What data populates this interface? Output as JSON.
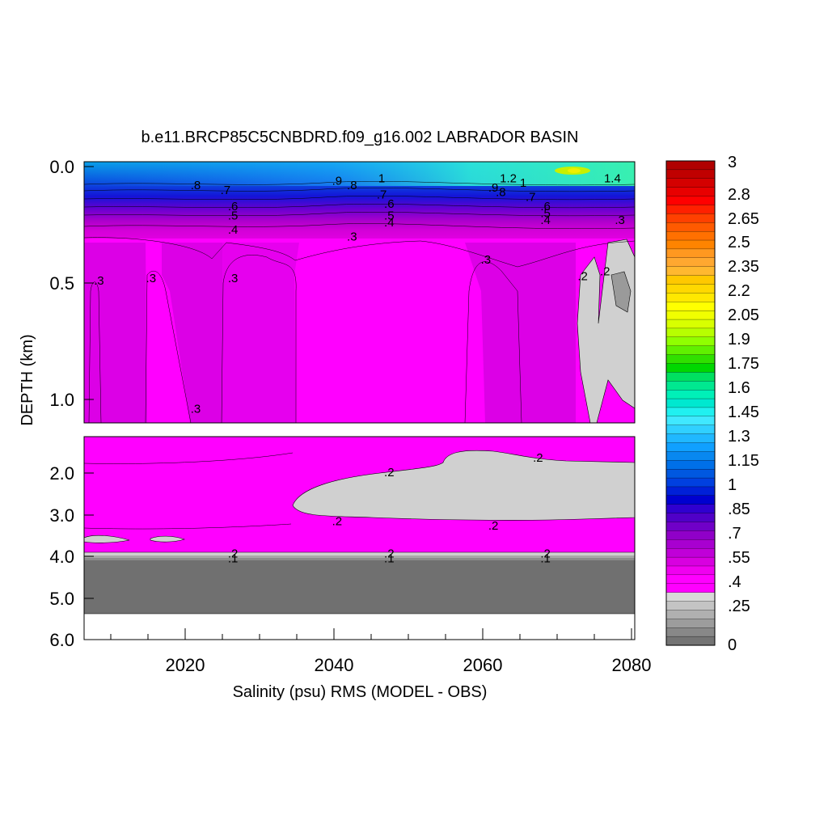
{
  "chart_data": {
    "type": "heatmap",
    "title": "b.e11.BRCP85C5CNBDRD.f09_g16.002 LABRADOR BASIN",
    "xlabel": "Salinity (psu) RMS (MODEL - OBS)",
    "ylabel": "DEPTH (km)",
    "x_ticks": [
      "2020",
      "2040",
      "2060",
      "2080"
    ],
    "y_ticks_upper": [
      "0.0",
      "0.5",
      "1.0"
    ],
    "y_ticks_lower": [
      "2.0",
      "3.0",
      "4.0",
      "5.0",
      "6.0"
    ],
    "xlim": [
      2006,
      2080
    ],
    "ylim_upper": [
      0.0,
      1.1
    ],
    "ylim_lower": [
      1.1,
      6.0
    ],
    "colorbar_labels": [
      "3",
      "2.8",
      "2.65",
      "2.5",
      "2.35",
      "2.2",
      "2.05",
      "1.9",
      "1.75",
      "1.6",
      "1.45",
      "1.3",
      "1.15",
      "1",
      ".85",
      ".7",
      ".55",
      ".4",
      ".25",
      "0"
    ],
    "contour_labels": [
      {
        "text": ".8",
        "x": 2021,
        "y": 0.08
      },
      {
        "text": ".7",
        "x": 2025,
        "y": 0.1
      },
      {
        "text": ".6",
        "x": 2026,
        "y": 0.17
      },
      {
        "text": ".5",
        "x": 2026,
        "y": 0.21
      },
      {
        "text": ".4",
        "x": 2026,
        "y": 0.27
      },
      {
        "text": ".9",
        "x": 2040,
        "y": 0.06
      },
      {
        "text": ".8",
        "x": 2042,
        "y": 0.08
      },
      {
        "text": "1",
        "x": 2046,
        "y": 0.05
      },
      {
        "text": ".7",
        "x": 2046,
        "y": 0.12
      },
      {
        "text": ".6",
        "x": 2047,
        "y": 0.16
      },
      {
        "text": ".5",
        "x": 2047,
        "y": 0.21
      },
      {
        "text": ".4",
        "x": 2047,
        "y": 0.24
      },
      {
        "text": ".3",
        "x": 2042,
        "y": 0.3
      },
      {
        "text": "1.2",
        "x": 2063,
        "y": 0.05
      },
      {
        "text": "1",
        "x": 2065,
        "y": 0.07
      },
      {
        "text": ".9",
        "x": 2061,
        "y": 0.09
      },
      {
        "text": ".8",
        "x": 2062,
        "y": 0.11
      },
      {
        "text": ".7",
        "x": 2066,
        "y": 0.13
      },
      {
        "text": ".6",
        "x": 2068,
        "y": 0.17
      },
      {
        "text": ".5",
        "x": 2068,
        "y": 0.2
      },
      {
        "text": ".4",
        "x": 2068,
        "y": 0.23
      },
      {
        "text": "1.4",
        "x": 2077,
        "y": 0.05
      },
      {
        "text": ".3",
        "x": 2078,
        "y": 0.23
      },
      {
        "text": ".3",
        "x": 2060,
        "y": 0.4
      },
      {
        "text": ".3",
        "x": 2008,
        "y": 0.49
      },
      {
        "text": ".3",
        "x": 2015,
        "y": 0.48
      },
      {
        "text": ".3",
        "x": 2026,
        "y": 0.48
      },
      {
        "text": ".2",
        "x": 2073,
        "y": 0.47
      },
      {
        "text": ".2",
        "x": 2076,
        "y": 0.45
      },
      {
        "text": ".3",
        "x": 2021,
        "y": 1.04
      },
      {
        "text": ".2",
        "x": 2047,
        "y": 1.98
      },
      {
        "text": ".2",
        "x": 2067,
        "y": 1.63
      },
      {
        "text": ".2",
        "x": 2040,
        "y": 3.16
      },
      {
        "text": ".2",
        "x": 2061,
        "y": 3.26
      },
      {
        "text": ".2",
        "x": 2026,
        "y": 3.93
      },
      {
        "text": ".1",
        "x": 2026,
        "y": 4.05
      },
      {
        "text": ".2",
        "x": 2047,
        "y": 3.93
      },
      {
        "text": ".1",
        "x": 2047,
        "y": 4.05
      },
      {
        "text": ".2",
        "x": 2068,
        "y": 3.93
      },
      {
        "text": ".1",
        "x": 2068,
        "y": 4.05
      }
    ],
    "grid": false,
    "colorbar_position": "right"
  }
}
